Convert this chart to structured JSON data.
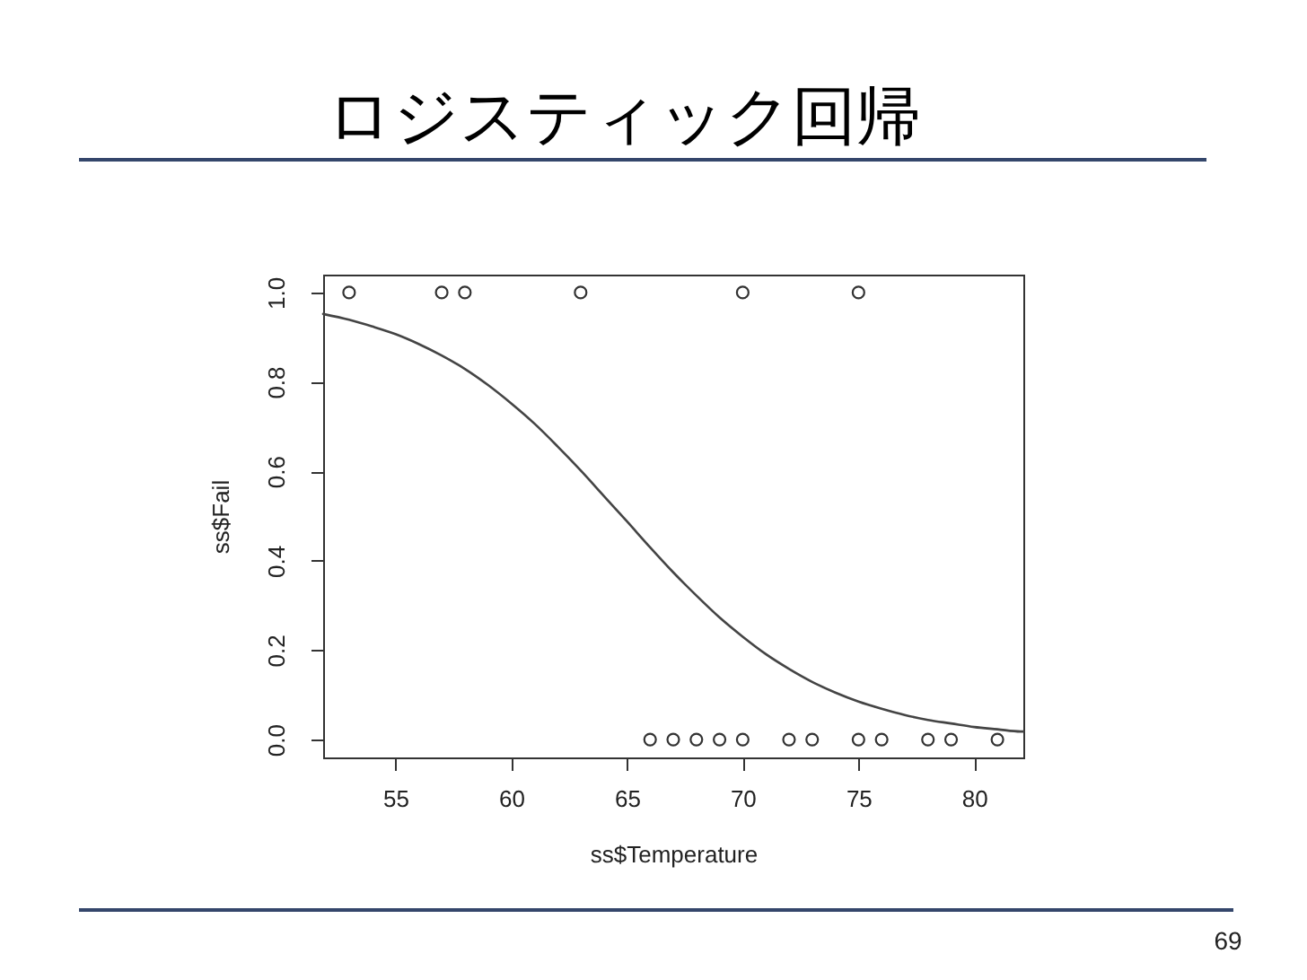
{
  "chart_data": {
    "type": "scatter",
    "title": "ロジスティック回帰",
    "xlabel": "ss$Temperature",
    "ylabel": "ss$Fail",
    "annotations": [
      "69"
    ],
    "xlim": [
      51.88,
      82.12
    ],
    "ylim": [
      -0.04,
      1.04
    ],
    "xticks": [
      55,
      60,
      65,
      70,
      75,
      80
    ],
    "yticks": [
      {
        "value": 0,
        "label": "0.0"
      },
      {
        "value": 0.2,
        "label": "0.2"
      },
      {
        "value": 0.4,
        "label": "0.4"
      },
      {
        "value": 0.6,
        "label": "0.6"
      },
      {
        "value": 0.8,
        "label": "0.8"
      },
      {
        "value": 1,
        "label": "1.0"
      }
    ],
    "grid": false,
    "series": [
      {
        "marker": "circle",
        "color": "#333333",
        "x": [
          53,
          57,
          58,
          63,
          70,
          75,
          66,
          67,
          68,
          69,
          70,
          72,
          73,
          75,
          76,
          78,
          79,
          81
        ],
        "values": [
          1,
          1,
          1,
          1,
          1,
          1,
          0,
          0,
          0,
          0,
          0,
          0,
          0,
          0,
          0,
          0,
          0,
          0
        ]
      },
      {
        "type": "line",
        "marker": "none",
        "line_style": "solid",
        "color": "#444444",
        "x": [
          51.88,
          53,
          54,
          55,
          56,
          57,
          58,
          59,
          60,
          61,
          62,
          63,
          64,
          65,
          66,
          67,
          68,
          69,
          70,
          71,
          72,
          73,
          74,
          75,
          76,
          77,
          78,
          79,
          80,
          81,
          82,
          82.12
        ],
        "values": [
          0.952,
          0.939,
          0.924,
          0.907,
          0.885,
          0.859,
          0.829,
          0.793,
          0.752,
          0.707,
          0.656,
          0.602,
          0.545,
          0.488,
          0.43,
          0.374,
          0.322,
          0.273,
          0.23,
          0.191,
          0.158,
          0.129,
          0.105,
          0.085,
          0.069,
          0.055,
          0.044,
          0.036,
          0.028,
          0.023,
          0.018,
          0.018
        ]
      }
    ]
  }
}
